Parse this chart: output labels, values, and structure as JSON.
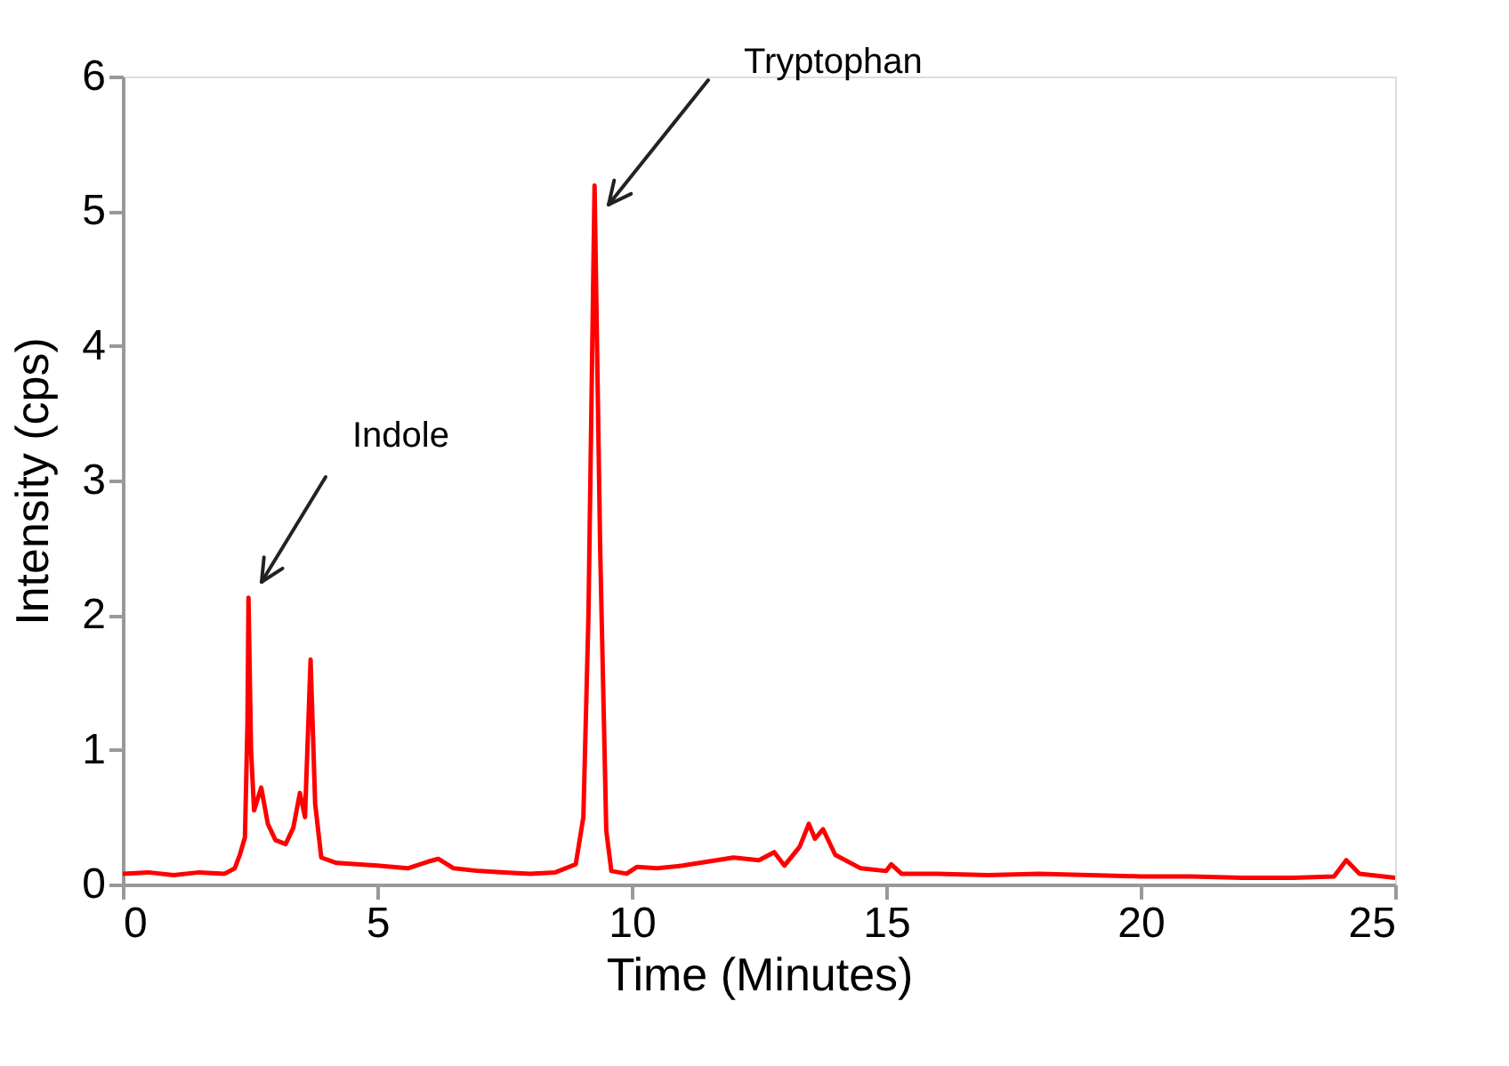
{
  "chart_data": {
    "type": "line",
    "xlabel": "Time (Minutes)",
    "ylabel": "Intensity (cps)",
    "x": [
      0,
      0.5,
      1,
      1.5,
      2,
      2.2,
      2.3,
      2.4,
      2.45,
      2.47,
      2.52,
      2.58,
      2.72,
      2.85,
      3.0,
      3.2,
      3.35,
      3.48,
      3.58,
      3.69,
      3.78,
      3.9,
      4.2,
      5,
      5.6,
      6.0,
      6.2,
      6.5,
      7,
      7.5,
      8,
      8.5,
      8.9,
      9.05,
      9.15,
      9.27,
      9.38,
      9.5,
      9.6,
      9.9,
      10.1,
      10.5,
      11,
      11.5,
      12,
      12.5,
      12.8,
      13.0,
      13.3,
      13.48,
      13.6,
      13.76,
      14,
      14.5,
      15,
      15.1,
      15.3,
      16,
      17,
      18,
      19,
      20,
      21,
      22,
      23,
      23.8,
      24.04,
      24.3,
      25
    ],
    "series": [
      {
        "color": "#ff0000",
        "values": [
          0.08,
          0.09,
          0.07,
          0.09,
          0.08,
          0.12,
          0.22,
          0.35,
          1.2,
          2.13,
          1.0,
          0.55,
          0.72,
          0.45,
          0.33,
          0.3,
          0.42,
          0.68,
          0.5,
          1.67,
          0.6,
          0.2,
          0.16,
          0.14,
          0.12,
          0.17,
          0.19,
          0.12,
          0.1,
          0.09,
          0.08,
          0.09,
          0.15,
          0.5,
          2.0,
          5.19,
          2.5,
          0.4,
          0.1,
          0.08,
          0.13,
          0.12,
          0.14,
          0.17,
          0.2,
          0.18,
          0.24,
          0.14,
          0.28,
          0.45,
          0.34,
          0.41,
          0.22,
          0.12,
          0.1,
          0.15,
          0.08,
          0.08,
          0.07,
          0.08,
          0.07,
          0.06,
          0.06,
          0.05,
          0.05,
          0.06,
          0.18,
          0.08,
          0.05
        ]
      }
    ],
    "xlim": [
      0,
      25
    ],
    "xticks": [
      0,
      5,
      10,
      15,
      20,
      25
    ],
    "ylim": [
      0,
      6
    ],
    "yticks": [
      0,
      1,
      2,
      3,
      4,
      5,
      6
    ],
    "grid": false,
    "marker": "none",
    "line_style": "solid",
    "annotations": [
      "Indole",
      "Tryptophan"
    ]
  }
}
